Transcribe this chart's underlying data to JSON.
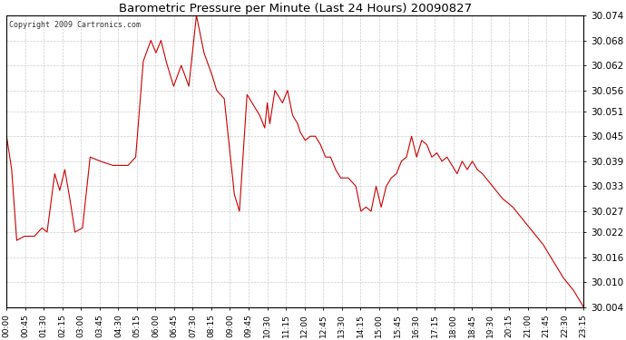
{
  "title": "Barometric Pressure per Minute (Last 24 Hours) 20090827",
  "copyright_text": "Copyright 2009 Cartronics.com",
  "line_color": "#cc0000",
  "background_color": "#ffffff",
  "grid_color": "#cccccc",
  "ylim": [
    30.004,
    30.074
  ],
  "yticks": [
    30.004,
    30.01,
    30.016,
    30.022,
    30.027,
    30.033,
    30.039,
    30.045,
    30.051,
    30.056,
    30.062,
    30.068,
    30.074
  ],
  "xtick_labels": [
    "00:00",
    "00:45",
    "01:30",
    "02:15",
    "03:00",
    "03:45",
    "04:30",
    "05:15",
    "06:00",
    "06:45",
    "07:30",
    "08:15",
    "09:00",
    "09:45",
    "10:30",
    "11:15",
    "12:00",
    "12:45",
    "13:30",
    "14:15",
    "15:00",
    "15:45",
    "16:30",
    "17:15",
    "18:00",
    "18:45",
    "19:30",
    "20:15",
    "21:00",
    "21:45",
    "22:30",
    "23:15"
  ],
  "key_points": [
    [
      0,
      30.045
    ],
    [
      10,
      30.037
    ],
    [
      20,
      30.02
    ],
    [
      35,
      30.021
    ],
    [
      55,
      30.021
    ],
    [
      70,
      30.023
    ],
    [
      80,
      30.022
    ],
    [
      95,
      30.036
    ],
    [
      105,
      30.032
    ],
    [
      115,
      30.037
    ],
    [
      125,
      30.03
    ],
    [
      135,
      30.022
    ],
    [
      150,
      30.023
    ],
    [
      165,
      30.04
    ],
    [
      185,
      30.039
    ],
    [
      210,
      30.038
    ],
    [
      240,
      30.038
    ],
    [
      255,
      30.04
    ],
    [
      270,
      30.063
    ],
    [
      285,
      30.068
    ],
    [
      295,
      30.065
    ],
    [
      305,
      30.068
    ],
    [
      315,
      30.063
    ],
    [
      330,
      30.057
    ],
    [
      345,
      30.062
    ],
    [
      360,
      30.057
    ],
    [
      375,
      30.074
    ],
    [
      390,
      30.065
    ],
    [
      405,
      30.06
    ],
    [
      415,
      30.056
    ],
    [
      430,
      30.054
    ],
    [
      450,
      30.031
    ],
    [
      460,
      30.027
    ],
    [
      475,
      30.055
    ],
    [
      490,
      30.052
    ],
    [
      500,
      30.05
    ],
    [
      510,
      30.047
    ],
    [
      515,
      30.053
    ],
    [
      520,
      30.048
    ],
    [
      530,
      30.056
    ],
    [
      545,
      30.053
    ],
    [
      555,
      30.056
    ],
    [
      565,
      30.05
    ],
    [
      575,
      30.048
    ],
    [
      580,
      30.046
    ],
    [
      590,
      30.044
    ],
    [
      600,
      30.045
    ],
    [
      610,
      30.045
    ],
    [
      620,
      30.043
    ],
    [
      630,
      30.04
    ],
    [
      640,
      30.04
    ],
    [
      650,
      30.037
    ],
    [
      660,
      30.035
    ],
    [
      675,
      30.035
    ],
    [
      690,
      30.033
    ],
    [
      700,
      30.027
    ],
    [
      710,
      30.028
    ],
    [
      720,
      30.027
    ],
    [
      730,
      30.033
    ],
    [
      740,
      30.028
    ],
    [
      750,
      30.033
    ],
    [
      760,
      30.035
    ],
    [
      770,
      30.036
    ],
    [
      780,
      30.039
    ],
    [
      790,
      30.04
    ],
    [
      800,
      30.045
    ],
    [
      810,
      30.04
    ],
    [
      820,
      30.044
    ],
    [
      830,
      30.043
    ],
    [
      840,
      30.04
    ],
    [
      850,
      30.041
    ],
    [
      860,
      30.039
    ],
    [
      870,
      30.04
    ],
    [
      880,
      30.038
    ],
    [
      890,
      30.036
    ],
    [
      900,
      30.039
    ],
    [
      910,
      30.037
    ],
    [
      920,
      30.039
    ],
    [
      930,
      30.037
    ],
    [
      940,
      30.036
    ],
    [
      960,
      30.033
    ],
    [
      980,
      30.03
    ],
    [
      1000,
      30.028
    ],
    [
      1020,
      30.025
    ],
    [
      1040,
      30.022
    ],
    [
      1060,
      30.019
    ],
    [
      1080,
      30.015
    ],
    [
      1100,
      30.011
    ],
    [
      1120,
      30.008
    ],
    [
      1140,
      30.004
    ]
  ],
  "n_points": 1141
}
